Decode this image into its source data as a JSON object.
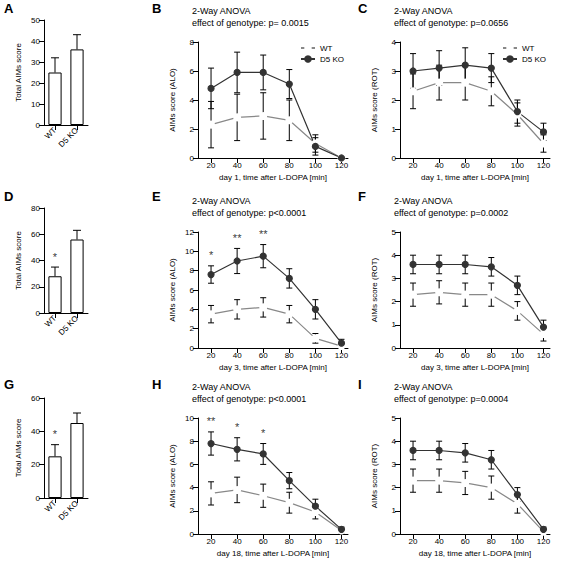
{
  "chart_data": [
    {
      "type": "bar",
      "panel_label": "A",
      "y_label": "Total AIMs score",
      "categories": [
        "WT",
        "D5 KO"
      ],
      "values": [
        25,
        36
      ],
      "errors": [
        7,
        7
      ],
      "colors": [
        "#ffffff",
        "#ffffff"
      ],
      "ylim": [
        0,
        50
      ],
      "yticks": [
        0,
        10,
        20,
        30,
        40,
        50
      ],
      "grid": false
    },
    {
      "type": "line",
      "panel_label": "B",
      "title": "2-Way ANOVA",
      "subtitle": "effect of genotype: p= 0.0015",
      "x_label": "day 1, time after L-DOPA [min]",
      "y_label": "AIMs score (ALO)",
      "x": [
        20,
        40,
        60,
        80,
        100,
        120
      ],
      "xlim": [
        10,
        125
      ],
      "xticks": [
        20,
        40,
        60,
        80,
        100,
        120
      ],
      "ylim": [
        0,
        8
      ],
      "yticks": [
        0,
        2,
        4,
        6,
        8
      ],
      "grid": false,
      "legend": "upper right",
      "series": [
        {
          "name": "WT",
          "color": "#888888",
          "marker": "open circle",
          "values": [
            2.3,
            2.8,
            2.9,
            2.6,
            1.0,
            0.0
          ],
          "errors": [
            1.6,
            1.6,
            1.6,
            1.4,
            0.6,
            0.1
          ]
        },
        {
          "name": "D5 KO",
          "color": "#333333",
          "marker": "circle",
          "values": [
            4.8,
            5.9,
            5.9,
            5.1,
            0.8,
            0.0
          ],
          "errors": [
            1.4,
            1.4,
            1.2,
            1.0,
            0.6,
            0.1
          ]
        }
      ]
    },
    {
      "type": "line",
      "panel_label": "C",
      "title": "2-Way ANOVA",
      "subtitle": "effect of genotype: p=0.0656",
      "x_label": "day 1, time after L-DOPA [min]",
      "y_label": "AIMs score (ROT)",
      "x": [
        20,
        40,
        60,
        80,
        100,
        120
      ],
      "xlim": [
        10,
        125
      ],
      "xticks": [
        20,
        40,
        60,
        80,
        100,
        120
      ],
      "ylim": [
        0,
        4
      ],
      "yticks": [
        0,
        1,
        2,
        3,
        4
      ],
      "grid": false,
      "legend": "upper right",
      "series": [
        {
          "name": "WT",
          "color": "#888888",
          "marker": "open circle",
          "values": [
            2.3,
            2.6,
            2.6,
            2.3,
            1.5,
            0.5
          ],
          "errors": [
            0.6,
            0.6,
            0.6,
            0.5,
            0.4,
            0.3
          ]
        },
        {
          "name": "D5 KO",
          "color": "#333333",
          "marker": "circle",
          "values": [
            3.0,
            3.1,
            3.2,
            3.1,
            1.6,
            0.9
          ],
          "errors": [
            0.6,
            0.6,
            0.6,
            0.5,
            0.4,
            0.3
          ]
        }
      ]
    },
    {
      "type": "bar",
      "panel_label": "D",
      "y_label": "Total AIMs score",
      "categories": [
        "WT",
        "D5 KO"
      ],
      "values": [
        28,
        56
      ],
      "errors": [
        7,
        7
      ],
      "colors": [
        "#ffffff",
        "#ffffff"
      ],
      "ylim": [
        0,
        80
      ],
      "yticks": [
        0,
        20,
        40,
        60,
        80
      ],
      "grid": false,
      "annotations": [
        {
          "category": "WT",
          "text": "*"
        }
      ]
    },
    {
      "type": "line",
      "panel_label": "E",
      "title": "2-Way ANOVA",
      "subtitle": "effect of genotype: p<0.0001",
      "x_label": "day 3, time after L-DOPA [min]",
      "y_label": "AIMs score (ALO)",
      "x": [
        20,
        40,
        60,
        80,
        100,
        120
      ],
      "xlim": [
        10,
        125
      ],
      "xticks": [
        20,
        40,
        60,
        80,
        100,
        120
      ],
      "ylim": [
        0,
        12
      ],
      "yticks": [
        0,
        2,
        4,
        6,
        8,
        10,
        12
      ],
      "grid": false,
      "series": [
        {
          "name": "WT",
          "color": "#888888",
          "marker": "open circle",
          "values": [
            3.5,
            4.0,
            4.2,
            3.5,
            1.0,
            0.2
          ],
          "errors": [
            0.9,
            1.0,
            1.0,
            0.9,
            0.5,
            0.2
          ]
        },
        {
          "name": "D5 KO",
          "color": "#333333",
          "marker": "circle",
          "values": [
            7.6,
            9.0,
            9.5,
            7.2,
            4.0,
            0.5
          ],
          "errors": [
            0.9,
            1.3,
            1.2,
            1.0,
            1.0,
            0.4
          ]
        }
      ],
      "annotations": [
        {
          "x": 20,
          "text": "*"
        },
        {
          "x": 40,
          "text": "**"
        },
        {
          "x": 60,
          "text": "**"
        }
      ]
    },
    {
      "type": "line",
      "panel_label": "F",
      "title": "2-Way ANOVA",
      "subtitle": "effect of genotype: p=0.0002",
      "x_label": "day 3, time after L-DOPA [min]",
      "y_label": "AIMs score (ROT)",
      "x": [
        20,
        40,
        60,
        80,
        100,
        120
      ],
      "xlim": [
        10,
        125
      ],
      "xticks": [
        20,
        40,
        60,
        80,
        100,
        120
      ],
      "ylim": [
        0,
        5
      ],
      "yticks": [
        0,
        1,
        2,
        3,
        4,
        5
      ],
      "grid": false,
      "series": [
        {
          "name": "WT",
          "color": "#888888",
          "marker": "open circle",
          "values": [
            2.3,
            2.4,
            2.3,
            2.3,
            1.6,
            0.6
          ],
          "errors": [
            0.5,
            0.5,
            0.5,
            0.5,
            0.4,
            0.3
          ]
        },
        {
          "name": "D5 KO",
          "color": "#333333",
          "marker": "circle",
          "values": [
            3.6,
            3.6,
            3.6,
            3.5,
            2.7,
            0.9
          ],
          "errors": [
            0.4,
            0.4,
            0.4,
            0.4,
            0.4,
            0.3
          ]
        }
      ]
    },
    {
      "type": "bar",
      "panel_label": "G",
      "y_label": "Total AIMs score",
      "categories": [
        "WT",
        "D5 KO"
      ],
      "values": [
        25,
        45
      ],
      "errors": [
        7,
        6
      ],
      "colors": [
        "#ffffff",
        "#ffffff"
      ],
      "ylim": [
        0,
        60
      ],
      "yticks": [
        0,
        20,
        40,
        60
      ],
      "grid": false,
      "annotations": [
        {
          "category": "WT",
          "text": "*"
        }
      ]
    },
    {
      "type": "line",
      "panel_label": "H",
      "title": "2-Way ANOVA",
      "subtitle": "effect of genotype: p<0.0001",
      "x_label": "day 18, time after L-DOPA [min]",
      "y_label": "AIMs score (ALO)",
      "x": [
        20,
        40,
        60,
        80,
        100,
        120
      ],
      "xlim": [
        10,
        125
      ],
      "xticks": [
        20,
        40,
        60,
        80,
        100,
        120
      ],
      "ylim": [
        0,
        10
      ],
      "yticks": [
        0,
        2,
        4,
        6,
        8,
        10
      ],
      "grid": false,
      "series": [
        {
          "name": "WT",
          "color": "#888888",
          "marker": "open circle",
          "values": [
            3.5,
            3.8,
            3.3,
            2.7,
            1.9,
            0.3
          ],
          "errors": [
            1.0,
            1.1,
            1.0,
            0.9,
            0.6,
            0.2
          ]
        },
        {
          "name": "D5 KO",
          "color": "#333333",
          "marker": "circle",
          "values": [
            7.8,
            7.3,
            6.9,
            4.6,
            2.4,
            0.4
          ],
          "errors": [
            1.0,
            1.0,
            0.9,
            0.7,
            0.6,
            0.2
          ]
        }
      ],
      "annotations": [
        {
          "x": 20,
          "text": "**"
        },
        {
          "x": 40,
          "text": "*"
        },
        {
          "x": 60,
          "text": "*"
        }
      ]
    },
    {
      "type": "line",
      "panel_label": "I",
      "title": "2-Way ANOVA",
      "subtitle": "effect of genotype: p=0.0004",
      "x_label": "day 18, time after L-DOPA [min]",
      "y_label": "AIMs score (ROT)",
      "x": [
        20,
        40,
        60,
        80,
        100,
        120
      ],
      "xlim": [
        10,
        125
      ],
      "xticks": [
        20,
        40,
        60,
        80,
        100,
        120
      ],
      "ylim": [
        0,
        5
      ],
      "yticks": [
        0,
        1,
        2,
        3,
        4,
        5
      ],
      "grid": false,
      "series": [
        {
          "name": "WT",
          "color": "#888888",
          "marker": "open circle",
          "values": [
            2.3,
            2.3,
            2.2,
            2.0,
            1.3,
            0.1
          ],
          "errors": [
            0.5,
            0.5,
            0.5,
            0.5,
            0.4,
            0.1
          ]
        },
        {
          "name": "D5 KO",
          "color": "#333333",
          "marker": "circle",
          "values": [
            3.6,
            3.6,
            3.5,
            3.2,
            1.7,
            0.2
          ],
          "errors": [
            0.4,
            0.4,
            0.4,
            0.4,
            0.3,
            0.1
          ]
        }
      ]
    }
  ]
}
